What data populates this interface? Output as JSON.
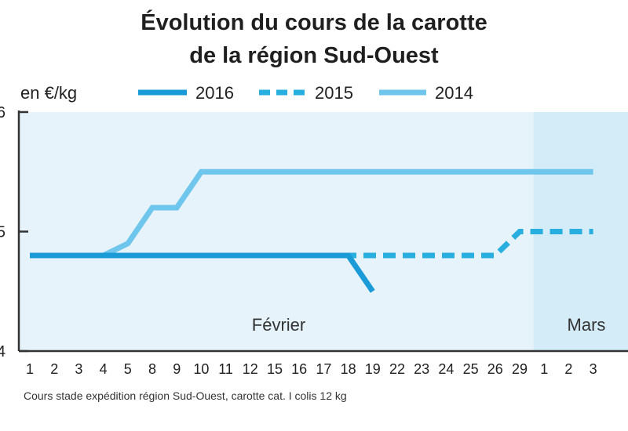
{
  "chart_data": {
    "type": "line",
    "title": "Évolution du cours de la carotte",
    "subtitle": "de la région Sud-Ouest",
    "ylabel": "en €/kg",
    "ylim": [
      0.4,
      0.6
    ],
    "yticks": [
      "6",
      "5",
      "4"
    ],
    "categories": [
      "1",
      "2",
      "3",
      "4",
      "5",
      "8",
      "9",
      "10",
      "11",
      "12",
      "15",
      "16",
      "17",
      "18",
      "19",
      "22",
      "23",
      "24",
      "25",
      "26",
      "29",
      "1",
      "2",
      "3"
    ],
    "months": [
      {
        "label": "Février",
        "start_index": 0,
        "end_index": 20
      },
      {
        "label": "Mars",
        "start_index": 21,
        "end_index": 23
      }
    ],
    "series": [
      {
        "name": "2016",
        "style": "solid",
        "color": "#1a9bd7",
        "values": [
          0.48,
          0.48,
          0.48,
          0.48,
          0.48,
          0.48,
          0.48,
          0.48,
          0.48,
          0.48,
          0.48,
          0.48,
          0.48,
          0.48,
          0.45,
          null,
          null,
          null,
          null,
          null,
          null,
          null,
          null,
          null
        ]
      },
      {
        "name": "2015",
        "style": "dashed",
        "color": "#29aee0",
        "values": [
          0.48,
          0.48,
          0.48,
          0.48,
          0.48,
          0.48,
          0.48,
          0.48,
          0.48,
          0.48,
          0.48,
          0.48,
          0.48,
          0.48,
          0.48,
          0.48,
          0.48,
          0.48,
          0.48,
          0.48,
          0.5,
          0.5,
          0.5,
          0.5
        ]
      },
      {
        "name": "2014",
        "style": "solid",
        "color": "#6fc6ec",
        "values": [
          0.48,
          0.48,
          0.48,
          0.48,
          0.49,
          0.52,
          0.52,
          0.55,
          0.55,
          0.55,
          0.55,
          0.55,
          0.55,
          0.55,
          0.55,
          0.55,
          0.55,
          0.55,
          0.55,
          0.55,
          0.55,
          0.55,
          0.55,
          0.55
        ]
      }
    ],
    "grid": false,
    "legend_position": "top"
  },
  "source": "Cours stade expédition région Sud-Ouest, carotte cat. I colis 12 kg",
  "colors": {
    "plot_background": "#e6f3fb",
    "march_background": "#d4ebf8",
    "axis": "#333333"
  }
}
